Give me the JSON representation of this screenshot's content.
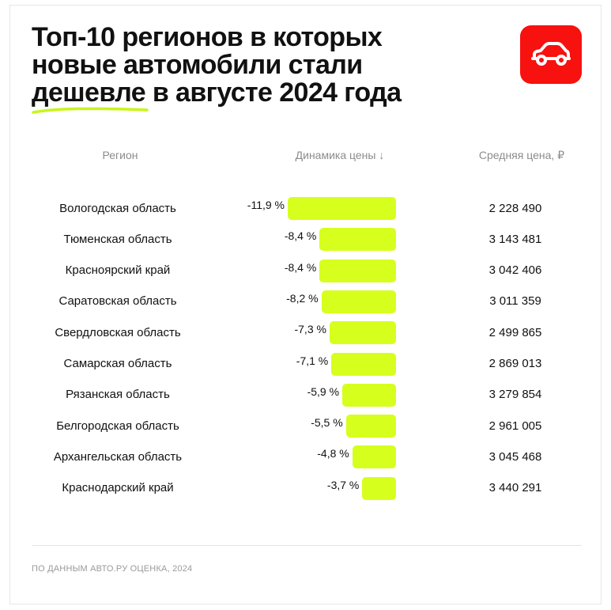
{
  "title": {
    "line1": "Топ-10 регионов в которых",
    "line2": "новые автомобили стали",
    "line3_highlight": "дешевле",
    "line3_rest": " в августе 2024 года"
  },
  "headers": {
    "region": "Регион",
    "dynamics": "Динамика цены ↓",
    "price": "Средняя цена, ₽"
  },
  "chart_data": {
    "type": "bar",
    "categories": [
      "Вологодская область",
      "Тюменская область",
      "Красноярский край",
      "Саратовская область",
      "Свердловская область",
      "Самарская область",
      "Рязанская область",
      "Белгородская область",
      "Архангельская область",
      "Краснодарский край"
    ],
    "values": [
      -11.9,
      -8.4,
      -8.4,
      -8.2,
      -7.3,
      -7.1,
      -5.9,
      -5.5,
      -4.8,
      -3.7
    ],
    "value_labels": [
      "-11,9 %",
      "-8,4 %",
      "-8,4 %",
      "-8,2 %",
      "-7,3 %",
      "-7,1 %",
      "-5,9 %",
      "-5,5 %",
      "-4,8 %",
      "-3,7 %"
    ],
    "prices": [
      "2 228 490",
      "3 143 481",
      "3 042 406",
      "3 011 359",
      "2 499 865",
      "2 869 013",
      "3 279 854",
      "2 961 005",
      "3 045 468",
      "3 440 291"
    ],
    "orientation": "horizontal",
    "grid": false,
    "legend": "none"
  },
  "footer": "ПО ДАННЫМ АВТО.РУ ОЦЕНКА, 2024",
  "colors": {
    "bar": "#d6ff1e",
    "accent_underline": "#c8f51a",
    "logo_bg": "#f7110f",
    "logo_icon": "#ffffff"
  },
  "logo": {
    "icon": "car-icon"
  }
}
